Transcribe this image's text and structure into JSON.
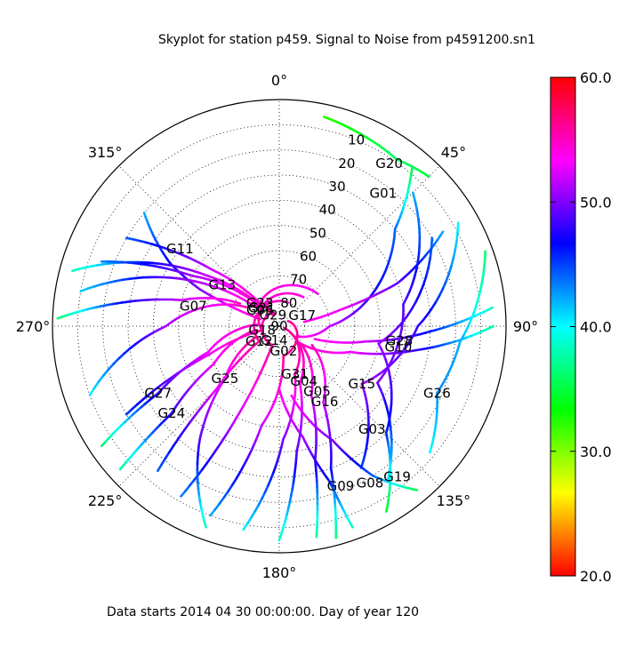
{
  "figure": {
    "title": "Skyplot for station p459.   Signal to Noise from p4591200.sn1",
    "footer": "Data starts 2014 04 30 00:00:00.  Day of year 120"
  },
  "chart_data": {
    "type": "scatter",
    "projection": "polar",
    "theta_direction": "clockwise",
    "theta_zero": "north",
    "theta_tick_labels": [
      "0°",
      "45°",
      "90°",
      "135°",
      "180°",
      "225°",
      "270°",
      "315°"
    ],
    "r_axis": "elevation (deg), 90 at center",
    "r_tick_labels": [
      "10",
      "20",
      "30",
      "40",
      "50",
      "60",
      "70",
      "80",
      "90"
    ],
    "grid": true,
    "colorbar": {
      "min": 20.0,
      "max": 60.0,
      "tick_labels": [
        "60.0",
        "50.0",
        "40.0",
        "30.0",
        "20.0"
      ],
      "colormap": [
        "#ff0000",
        "#ff8000",
        "#ffff00",
        "#80ff00",
        "#00ff00",
        "#00ff80",
        "#00ffff",
        "#0080ff",
        "#0000ff",
        "#8000ff",
        "#ff00ff",
        "#ff0080",
        "#ff0000"
      ]
    },
    "satellite_labels": [
      {
        "name": "G20",
        "az": 34,
        "el": 12
      },
      {
        "name": "G01",
        "az": 38,
        "el": 23
      },
      {
        "name": "G11",
        "az": 308,
        "el": 40
      },
      {
        "name": "G13",
        "az": 306,
        "el": 62
      },
      {
        "name": "G23",
        "az": 320,
        "el": 78
      },
      {
        "name": "G06",
        "az": 310,
        "el": 80
      },
      {
        "name": "G21",
        "az": 316,
        "el": 80
      },
      {
        "name": "G29",
        "az": 330,
        "el": 85
      },
      {
        "name": "G17",
        "az": 65,
        "el": 80
      },
      {
        "name": "G07",
        "az": 283,
        "el": 55
      },
      {
        "name": "G18",
        "az": 257,
        "el": 83
      },
      {
        "name": "G14",
        "az": 200,
        "el": 84
      },
      {
        "name": "G12",
        "az": 233,
        "el": 80
      },
      {
        "name": "G02",
        "az": 170,
        "el": 80
      },
      {
        "name": "G31",
        "az": 162,
        "el": 70
      },
      {
        "name": "G04",
        "az": 156,
        "el": 66
      },
      {
        "name": "G05",
        "az": 150,
        "el": 60
      },
      {
        "name": "G16",
        "az": 149,
        "el": 55
      },
      {
        "name": "G15",
        "az": 125,
        "el": 50
      },
      {
        "name": "G28",
        "az": 97,
        "el": 42
      },
      {
        "name": "G10",
        "az": 100,
        "el": 42
      },
      {
        "name": "G26",
        "az": 113,
        "el": 22
      },
      {
        "name": "G25",
        "az": 226,
        "el": 60
      },
      {
        "name": "G27",
        "az": 241,
        "el": 35
      },
      {
        "name": "G24",
        "az": 231,
        "el": 35
      },
      {
        "name": "G03",
        "az": 138,
        "el": 35
      },
      {
        "name": "G09",
        "az": 159,
        "el": 22
      },
      {
        "name": "G08",
        "az": 150,
        "el": 18
      },
      {
        "name": "G19",
        "az": 142,
        "el": 14
      }
    ],
    "tracks": [
      {
        "sat": "G20",
        "points": [
          [
            12,
            5,
            32
          ],
          [
            22,
            7,
            34
          ],
          [
            35,
            9,
            36
          ],
          [
            45,
            6,
            35
          ]
        ]
      },
      {
        "sat": "G01",
        "points": [
          [
            40,
            8,
            35
          ],
          [
            50,
            30,
            44
          ],
          [
            70,
            50,
            47
          ],
          [
            90,
            70,
            52
          ],
          [
            120,
            82,
            54
          ]
        ]
      },
      {
        "sat": "G11",
        "points": [
          [
            310,
            20,
            42
          ],
          [
            300,
            40,
            47
          ],
          [
            295,
            55,
            50
          ],
          [
            292,
            70,
            53
          ],
          [
            290,
            82,
            55
          ]
        ]
      },
      {
        "sat": "G13",
        "points": [
          [
            285,
            5,
            38
          ],
          [
            295,
            30,
            46
          ],
          [
            305,
            55,
            52
          ],
          [
            315,
            75,
            55
          ],
          [
            330,
            85,
            55
          ]
        ]
      },
      {
        "sat": "G07",
        "points": [
          [
            272,
            2,
            36
          ],
          [
            278,
            25,
            46
          ],
          [
            285,
            50,
            52
          ],
          [
            300,
            72,
            55
          ]
        ]
      },
      {
        "sat": "G17",
        "points": [
          [
            60,
            15,
            42
          ],
          [
            70,
            40,
            49
          ],
          [
            75,
            65,
            53
          ],
          [
            80,
            80,
            54
          ]
        ]
      },
      {
        "sat": "G28",
        "points": [
          [
            85,
            5,
            38
          ],
          [
            92,
            30,
            46
          ],
          [
            100,
            55,
            52
          ],
          [
            110,
            75,
            54
          ]
        ]
      },
      {
        "sat": "G10",
        "points": [
          [
            90,
            5,
            37
          ],
          [
            100,
            35,
            48
          ],
          [
            110,
            60,
            53
          ],
          [
            130,
            80,
            55
          ]
        ]
      },
      {
        "sat": "G26",
        "points": [
          [
            70,
            3,
            36
          ],
          [
            95,
            18,
            42
          ],
          [
            113,
            22,
            43
          ],
          [
            130,
            12,
            40
          ]
        ]
      },
      {
        "sat": "G15",
        "points": [
          [
            60,
            8,
            40
          ],
          [
            90,
            35,
            48
          ],
          [
            125,
            50,
            51
          ],
          [
            150,
            25,
            45
          ]
        ]
      },
      {
        "sat": "G03",
        "points": [
          [
            45,
            15,
            42
          ],
          [
            80,
            40,
            49
          ],
          [
            120,
            45,
            50
          ],
          [
            145,
            15,
            40
          ]
        ]
      },
      {
        "sat": "G19",
        "points": [
          [
            60,
            20,
            44
          ],
          [
            100,
            50,
            51
          ],
          [
            135,
            30,
            46
          ],
          [
            150,
            5,
            34
          ]
        ]
      },
      {
        "sat": "G08",
        "points": [
          [
            140,
            5,
            35
          ],
          [
            148,
            20,
            44
          ],
          [
            155,
            40,
            50
          ],
          [
            170,
            62,
            54
          ]
        ]
      },
      {
        "sat": "G09",
        "points": [
          [
            160,
            5,
            38
          ],
          [
            162,
            25,
            46
          ],
          [
            168,
            45,
            51
          ],
          [
            180,
            65,
            54
          ]
        ]
      },
      {
        "sat": "G16",
        "points": [
          [
            165,
            3,
            36
          ],
          [
            160,
            30,
            47
          ],
          [
            150,
            55,
            52
          ],
          [
            120,
            75,
            55
          ]
        ]
      },
      {
        "sat": "G05",
        "points": [
          [
            170,
            5,
            37
          ],
          [
            165,
            35,
            48
          ],
          [
            155,
            60,
            53
          ],
          [
            130,
            78,
            55
          ]
        ]
      },
      {
        "sat": "G04",
        "points": [
          [
            180,
            5,
            38
          ],
          [
            172,
            40,
            49
          ],
          [
            160,
            66,
            54
          ],
          [
            120,
            85,
            56
          ]
        ]
      },
      {
        "sat": "G31",
        "points": [
          [
            190,
            8,
            40
          ],
          [
            178,
            45,
            50
          ],
          [
            162,
            70,
            55
          ],
          [
            110,
            88,
            56
          ]
        ]
      },
      {
        "sat": "G02",
        "points": [
          [
            200,
            10,
            42
          ],
          [
            190,
            50,
            52
          ],
          [
            172,
            78,
            56
          ],
          [
            60,
            86,
            56
          ]
        ]
      },
      {
        "sat": "G14",
        "points": [
          [
            210,
            12,
            43
          ],
          [
            205,
            50,
            52
          ],
          [
            200,
            82,
            56
          ],
          [
            330,
            84,
            55
          ]
        ]
      },
      {
        "sat": "G12",
        "points": [
          [
            220,
            15,
            44
          ],
          [
            225,
            55,
            53
          ],
          [
            233,
            80,
            56
          ],
          [
            300,
            80,
            55
          ]
        ]
      },
      {
        "sat": "G18",
        "points": [
          [
            240,
            20,
            45
          ],
          [
            248,
            60,
            53
          ],
          [
            257,
            83,
            56
          ],
          [
            350,
            78,
            55
          ]
        ]
      },
      {
        "sat": "G25",
        "points": [
          [
            200,
            5,
            38
          ],
          [
            215,
            35,
            49
          ],
          [
            226,
            60,
            53
          ],
          [
            245,
            80,
            56
          ]
        ]
      },
      {
        "sat": "G24",
        "points": [
          [
            228,
            5,
            37
          ],
          [
            231,
            35,
            48
          ],
          [
            240,
            60,
            53
          ],
          [
            260,
            80,
            55
          ]
        ]
      },
      {
        "sat": "G27",
        "points": [
          [
            236,
            5,
            36
          ],
          [
            241,
            35,
            48
          ],
          [
            250,
            60,
            53
          ],
          [
            275,
            82,
            55
          ]
        ]
      },
      {
        "sat": "G29",
        "points": [
          [
            250,
            10,
            40
          ],
          [
            270,
            45,
            51
          ],
          [
            300,
            75,
            55
          ],
          [
            340,
            85,
            56
          ]
        ]
      },
      {
        "sat": "G06",
        "points": [
          [
            280,
            10,
            41
          ],
          [
            295,
            45,
            50
          ],
          [
            310,
            80,
            55
          ],
          [
            20,
            80,
            55
          ]
        ]
      },
      {
        "sat": "G21",
        "points": [
          [
            290,
            15,
            43
          ],
          [
            300,
            50,
            51
          ],
          [
            316,
            80,
            55
          ],
          [
            40,
            75,
            54
          ]
        ]
      },
      {
        "sat": "G23",
        "points": [
          [
            300,
            20,
            44
          ],
          [
            310,
            55,
            52
          ],
          [
            320,
            78,
            55
          ],
          [
            50,
            70,
            53
          ]
        ]
      }
    ]
  }
}
